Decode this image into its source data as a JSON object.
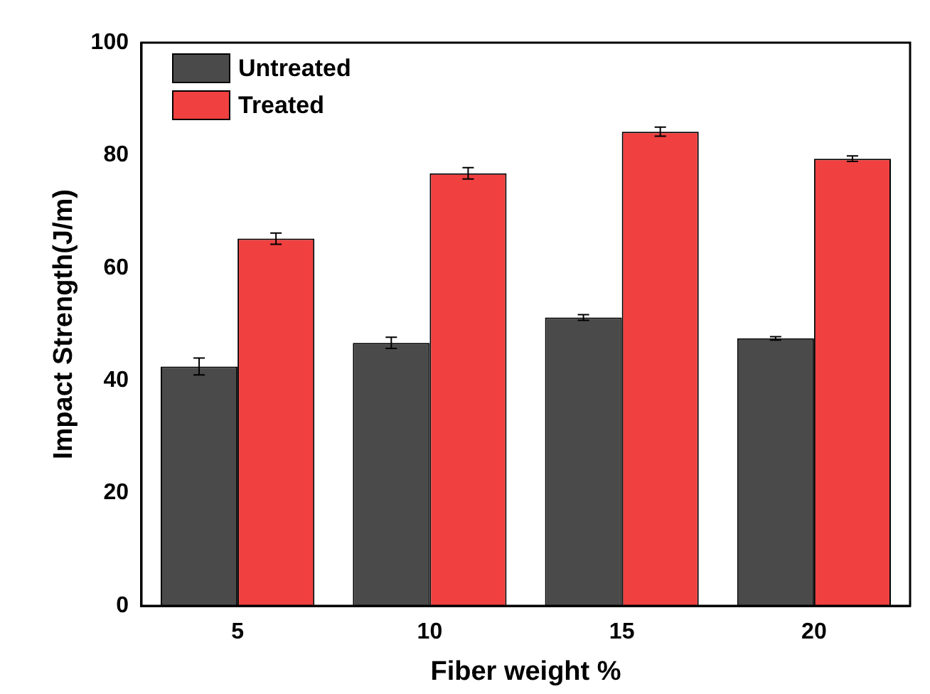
{
  "chart_data": {
    "type": "bar",
    "xlabel": "Fiber weight %",
    "ylabel": "Impact Strength(J/m)",
    "categories": [
      "5",
      "10",
      "15",
      "20"
    ],
    "series": [
      {
        "name": "Untreated",
        "color": "#4a4a4a",
        "values": [
          42.5,
          46.7,
          51.2,
          47.5
        ],
        "errors": [
          1.5,
          1,
          0.5,
          0.3
        ]
      },
      {
        "name": "Treated",
        "color": "#f04040",
        "values": [
          65.2,
          76.8,
          84.2,
          79.4
        ],
        "errors": [
          1,
          1,
          0.8,
          0.5
        ]
      }
    ],
    "ylim": [
      0,
      100
    ],
    "yticks": [
      0,
      20,
      40,
      60,
      80,
      100
    ],
    "grid": false,
    "legend": "top left"
  }
}
